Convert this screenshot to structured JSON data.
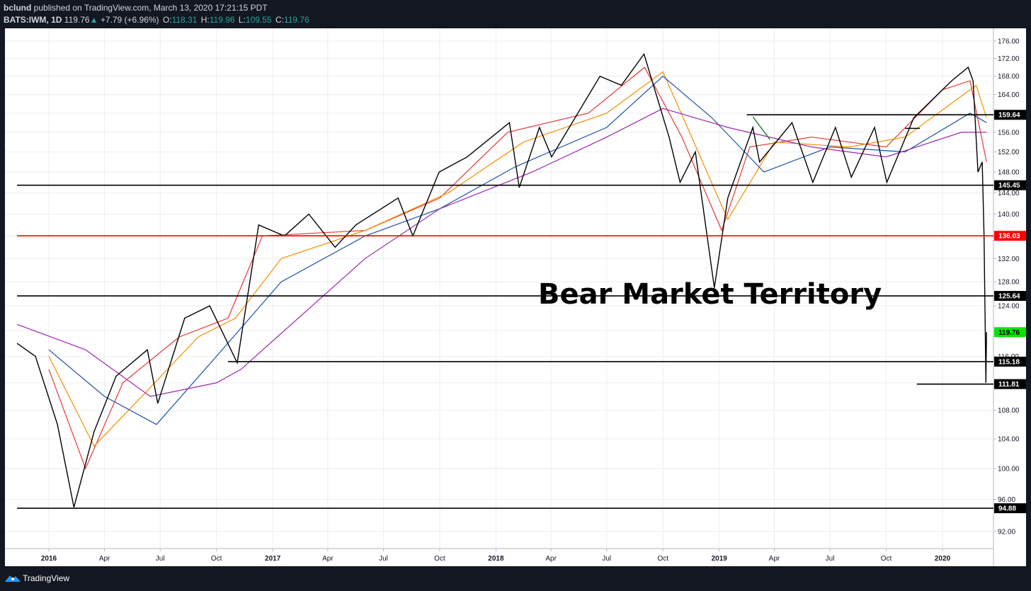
{
  "header": {
    "author": "bclund",
    "published": "published on TradingView.com, March 13, 2020 17:21:15 PDT",
    "symbol": "BATS:IWM, 1D",
    "last": "119.76",
    "change": "+7.79 (+6.96%)",
    "o_label": "O:",
    "o_value": "118.31",
    "h_label": "H:",
    "h_value": "119.96",
    "l_label": "L:",
    "l_value": "109.55",
    "c_label": "C:",
    "c_value": "119.76"
  },
  "footer": {
    "brand": "TradingView"
  },
  "annotation": "Bear Market Territory",
  "colors": {
    "candles": "#000000",
    "ma_red": "#e53935",
    "ma_orange": "#fb8c00",
    "ma_blue": "#1e53a8",
    "ma_purple": "#9c27b0",
    "resistance_red": "#ff0000",
    "last_price_tag": "#00e600"
  },
  "chart_data": {
    "type": "line",
    "title": "",
    "xlabel": "",
    "ylabel": "",
    "scale": "log",
    "ylim": [
      90,
      177
    ],
    "y_ticks": [
      92,
      96,
      100,
      104,
      108,
      112,
      116,
      120,
      124,
      128,
      132,
      136,
      140,
      144,
      148,
      152,
      156,
      160,
      164,
      168,
      172,
      176
    ],
    "y_tick_labels": [
      "92.00",
      "96.00",
      "100.00",
      "104.00",
      "108.00",
      "112.00",
      "116.00",
      "120.00",
      "124.00",
      "128.00",
      "132.00",
      "136.00",
      "140.00",
      "144.00",
      "148.00",
      "152.00",
      "156.00",
      "160.00",
      "164.00",
      "168.00",
      "172.00",
      "176.00"
    ],
    "x_ticks": [
      "2016",
      "Apr",
      "Jul",
      "Oct",
      "2017",
      "Apr",
      "Jul",
      "Oct",
      "2018",
      "Apr",
      "Jul",
      "Oct",
      "2019",
      "Apr",
      "Jul",
      "Oct",
      "2020"
    ],
    "x_tick_dates": [
      "2016-01-01",
      "2016-04-01",
      "2016-07-01",
      "2016-10-01",
      "2017-01-01",
      "2017-04-01",
      "2017-07-01",
      "2017-10-01",
      "2018-01-01",
      "2018-04-01",
      "2018-07-01",
      "2018-10-01",
      "2019-01-01",
      "2019-04-01",
      "2019-07-01",
      "2019-10-01",
      "2020-01-01"
    ],
    "price_series": {
      "name": "",
      "dates": [
        "2015-11-10",
        "2015-12-10",
        "2016-01-15",
        "2016-02-11",
        "2016-03-15",
        "2016-04-20",
        "2016-06-10",
        "2016-06-27",
        "2016-08-10",
        "2016-09-20",
        "2016-11-04",
        "2016-12-09",
        "2017-01-20",
        "2017-03-01",
        "2017-04-13",
        "2017-05-17",
        "2017-07-25",
        "2017-08-18",
        "2017-09-30",
        "2017-11-15",
        "2018-01-23",
        "2018-02-08",
        "2018-03-13",
        "2018-04-02",
        "2018-06-20",
        "2018-07-25",
        "2018-08-31",
        "2018-10-11",
        "2018-10-29",
        "2018-11-23",
        "2018-12-24",
        "2019-01-15",
        "2019-02-25",
        "2019-03-08",
        "2019-04-30",
        "2019-06-03",
        "2019-07-10",
        "2019-08-05",
        "2019-09-12",
        "2019-10-02",
        "2019-11-15",
        "2020-01-16",
        "2020-02-12",
        "2020-02-20",
        "2020-02-28",
        "2020-03-06",
        "2020-03-09",
        "2020-03-12",
        "2020-03-13"
      ],
      "close": [
        118,
        116,
        106,
        95,
        105,
        113,
        117,
        109,
        122,
        124,
        115,
        138,
        136,
        140,
        134,
        138,
        143,
        136,
        148,
        151,
        158,
        145,
        157,
        151,
        168,
        166,
        173,
        155,
        146,
        152,
        127,
        143,
        157,
        150,
        158,
        146,
        157,
        147,
        157,
        146,
        159,
        167,
        170,
        167,
        148,
        150,
        136,
        112,
        119.76
      ]
    },
    "series": [
      {
        "name": "",
        "color": "#e53935",
        "dates": [
          "2016-01-01",
          "2016-03-01",
          "2016-05-01",
          "2016-08-01",
          "2016-10-20",
          "2016-12-15",
          "2017-06-01",
          "2017-10-01",
          "2018-01-20",
          "2018-06-01",
          "2018-09-01",
          "2018-11-01",
          "2019-01-05",
          "2019-02-20",
          "2019-06-01",
          "2019-10-01",
          "2020-01-01",
          "2020-02-15",
          "2020-03-13"
        ],
        "values": [
          114,
          100,
          112,
          119,
          122,
          136,
          137,
          143,
          156,
          160,
          170,
          155,
          137,
          153,
          155,
          153,
          165,
          167,
          150
        ]
      },
      {
        "name": "",
        "color": "#fb8c00",
        "dates": [
          "2016-01-01",
          "2016-03-15",
          "2016-06-01",
          "2016-09-01",
          "2016-11-01",
          "2017-01-15",
          "2017-06-01",
          "2017-10-15",
          "2018-02-15",
          "2018-07-01",
          "2018-10-01",
          "2019-01-15",
          "2019-04-01",
          "2019-08-01",
          "2019-11-01",
          "2020-01-15",
          "2020-02-25",
          "2020-03-13"
        ],
        "values": [
          116,
          103,
          110,
          119,
          122,
          132,
          137,
          144,
          154,
          160,
          169,
          139,
          154,
          153,
          155,
          162,
          166,
          159
        ]
      },
      {
        "name": "",
        "color": "#1e53a8",
        "dates": [
          "2016-01-01",
          "2016-04-01",
          "2016-06-25",
          "2016-10-01",
          "2017-01-15",
          "2017-06-01",
          "2017-10-01",
          "2018-02-01",
          "2018-07-01",
          "2018-10-01",
          "2018-12-20",
          "2019-03-15",
          "2019-07-01",
          "2019-11-01",
          "2020-02-15",
          "2020-03-13"
        ],
        "values": [
          117,
          110,
          106,
          116,
          128,
          136,
          141,
          149,
          157,
          168,
          159,
          148,
          153,
          152,
          160,
          158
        ]
      },
      {
        "name": "",
        "color": "#9c27b0",
        "dates": [
          "2015-11-10",
          "2016-03-01",
          "2016-06-15",
          "2016-10-01",
          "2016-11-10",
          "2017-06-01",
          "2017-10-01",
          "2018-03-01",
          "2018-07-01",
          "2018-10-01",
          "2019-01-15",
          "2019-06-01",
          "2019-10-01",
          "2020-02-01",
          "2020-03-13"
        ],
        "values": [
          121,
          117,
          110,
          112,
          114,
          132,
          141,
          148,
          155,
          161,
          157,
          153,
          151,
          156,
          156
        ]
      }
    ],
    "horizontal_levels": [
      {
        "value": 159.64,
        "label": "159.64",
        "start": "2019-02-15",
        "color": "#000000"
      },
      {
        "value": 145.45,
        "label": "145.45",
        "start": "2015-11-10",
        "color": "#000000"
      },
      {
        "value": 136.03,
        "label": "136.03",
        "start": "2015-11-10",
        "color": "#ff0000"
      },
      {
        "value": 125.64,
        "label": "125.64",
        "start": "2015-11-10",
        "color": "#000000"
      },
      {
        "value": 115.18,
        "label": "115.18",
        "start": "2016-10-20",
        "color": "#000000"
      },
      {
        "value": 111.81,
        "label": "111.81",
        "start": "2019-11-20",
        "color": "#000000"
      },
      {
        "value": 94.88,
        "label": "94.88",
        "start": "2015-11-10",
        "color": "#000000"
      }
    ],
    "last_price": {
      "value": 119.76,
      "label": "119.76",
      "color": "#00e600"
    },
    "trendlines": [
      {
        "color": "#2e7d32",
        "from": [
          "2019-02-25",
          159.2
        ],
        "to": [
          "2019-03-25",
          154.5
        ]
      },
      {
        "color": "#000000",
        "from": [
          "2019-11-01",
          156.8
        ],
        "to": [
          "2019-11-25",
          156.8
        ]
      }
    ],
    "grid": true,
    "legend": "none"
  }
}
